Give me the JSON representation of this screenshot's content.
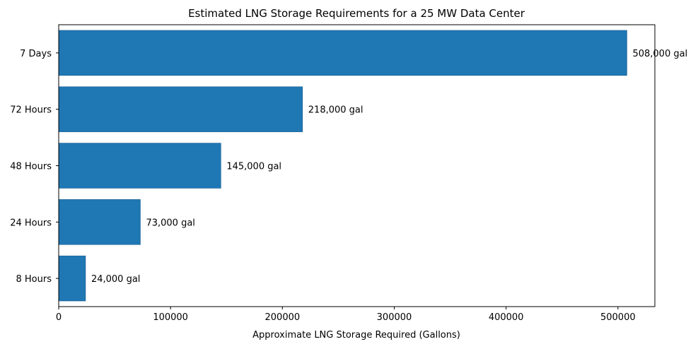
{
  "chart_data": {
    "type": "bar",
    "orientation": "horizontal",
    "title": "Estimated LNG Storage Requirements for a 25 MW Data Center",
    "xlabel": "Approximate LNG Storage Required (Gallons)",
    "ylabel": "",
    "categories": [
      "8 Hours",
      "24 Hours",
      "48 Hours",
      "72 Hours",
      "7 Days"
    ],
    "values": [
      24000,
      73000,
      145000,
      218000,
      508000
    ],
    "data_labels": [
      "24,000 gal",
      "73,000 gal",
      "145,000 gal",
      "218,000 gal",
      "508,000 gal"
    ],
    "xlim": [
      0,
      533000
    ],
    "x_ticks": [
      0,
      100000,
      200000,
      300000,
      400000,
      500000
    ],
    "x_tick_labels": [
      "0",
      "100000",
      "200000",
      "300000",
      "400000",
      "500000"
    ],
    "grid": false,
    "legend": "none",
    "colors": {
      "bar": "#1f77b4",
      "bar_edge": "#1a5f90",
      "axis": "#000000",
      "background": "#ffffff"
    }
  }
}
